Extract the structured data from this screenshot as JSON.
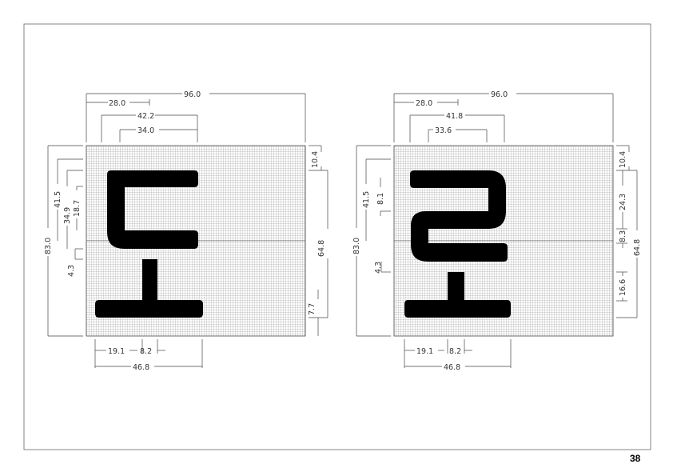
{
  "page": {
    "page_number": "38"
  },
  "colors": {
    "glyph": "#000000",
    "grid": "#888888",
    "dimension_line": "#444444",
    "frame": "#666666"
  },
  "panels": [
    {
      "id": "left",
      "glyph": "ㄷ over ㅗ",
      "dims": {
        "top_total": "96.0",
        "top_offset": "28.0",
        "top_glyph_width": "42.2",
        "top_inner_width": "34.0",
        "left_height": "83.0",
        "left_upper": "41.5",
        "left_a": "34.9",
        "left_b": "18.7",
        "left_gap": "4.3",
        "right_top": "10.4",
        "right_height": "64.8",
        "right_bottom": "7.7",
        "bottom_left": "19.1",
        "bottom_stem": "8.2",
        "bottom_width": "46.8"
      }
    },
    {
      "id": "right",
      "glyph": "ㄹ over ㅗ",
      "dims": {
        "top_total": "96.0",
        "top_offset": "28.0",
        "top_glyph_width": "41.8",
        "top_inner_width": "33.6",
        "left_height": "83.0",
        "left_upper": "41.5",
        "left_a": "8.1",
        "left_gap": "4.3",
        "right_top": "10.4",
        "right_a": "24.3",
        "right_b": "8.3",
        "right_height": "64.8",
        "right_c": "16.6",
        "bottom_left": "19.1",
        "bottom_stem": "8.2",
        "bottom_width": "46.8"
      }
    }
  ]
}
